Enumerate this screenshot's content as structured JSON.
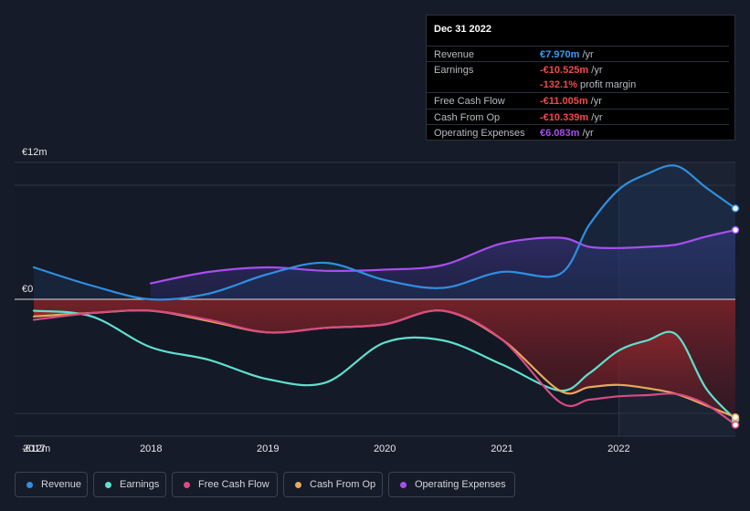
{
  "colors": {
    "revenue": "#2f8fe0",
    "earnings": "#5fe0cf",
    "free_cash_flow": "#d94a83",
    "cash_from_op": "#e8a85a",
    "operating_expenses": "#a84ef0",
    "negative_value": "#e84a4a",
    "background": "#151b28"
  },
  "tooltip": {
    "date": "Dec 31 2022",
    "rows": [
      {
        "label": "Revenue",
        "value": "€7.970m",
        "unit": "/yr",
        "color": "#3b9cf2"
      },
      {
        "label": "Earnings",
        "value": "-€10.525m",
        "unit": "/yr",
        "color": "#ef4b4b"
      },
      {
        "label": "",
        "value": "-132.1%",
        "unit": "profit margin",
        "color": "#ef4b4b"
      },
      {
        "label": "Free Cash Flow",
        "value": "-€11.005m",
        "unit": "/yr",
        "color": "#ef4b4b"
      },
      {
        "label": "Cash From Op",
        "value": "-€10.339m",
        "unit": "/yr",
        "color": "#ef4b4b"
      },
      {
        "label": "Operating Expenses",
        "value": "€6.083m",
        "unit": "/yr",
        "color": "#a84ef0"
      }
    ]
  },
  "legend": [
    {
      "label": "Revenue",
      "color": "#2f8fe0"
    },
    {
      "label": "Earnings",
      "color": "#5fe0cf"
    },
    {
      "label": "Free Cash Flow",
      "color": "#d94a83"
    },
    {
      "label": "Cash From Op",
      "color": "#e8a85a"
    },
    {
      "label": "Operating Expenses",
      "color": "#a84ef0"
    }
  ],
  "chart_data": {
    "type": "line",
    "y_unit": "€m",
    "ylim": [
      -12,
      12
    ],
    "xlim": [
      "2016-11-01",
      "2022-12-31"
    ],
    "y_tick_labels": [
      "€12m",
      "€0",
      "-€12m"
    ],
    "y_ticks": [
      12,
      0,
      -12
    ],
    "x_tick_labels": [
      "2017",
      "2018",
      "2019",
      "2020",
      "2021",
      "2022"
    ],
    "x_ticks": [
      "2017-01-01",
      "2018-01-01",
      "2019-01-01",
      "2020-01-01",
      "2021-01-01",
      "2022-01-01"
    ],
    "highlight_from": "2022-01-01",
    "series": [
      {
        "name": "Revenue",
        "key": "revenue",
        "x": [
          "2016-12-31",
          "2017-06-30",
          "2017-12-31",
          "2018-06-30",
          "2018-12-31",
          "2019-06-30",
          "2019-12-31",
          "2020-06-30",
          "2020-12-31",
          "2021-06-30",
          "2021-09-30",
          "2021-12-31",
          "2022-03-31",
          "2022-06-30",
          "2022-09-30",
          "2022-12-31"
        ],
        "y": [
          2.8,
          1.2,
          0.0,
          0.5,
          2.2,
          3.2,
          1.7,
          1.0,
          2.4,
          2.2,
          6.5,
          9.6,
          11.0,
          11.7,
          9.8,
          7.97
        ]
      },
      {
        "name": "Earnings",
        "key": "earnings",
        "x": [
          "2016-12-31",
          "2017-06-30",
          "2017-12-31",
          "2018-06-30",
          "2018-12-31",
          "2019-06-30",
          "2019-12-31",
          "2020-06-30",
          "2020-12-31",
          "2021-06-30",
          "2021-09-30",
          "2021-12-31",
          "2022-03-31",
          "2022-06-30",
          "2022-09-30",
          "2022-12-31"
        ],
        "y": [
          -1.0,
          -1.5,
          -4.2,
          -5.3,
          -7.0,
          -7.3,
          -3.8,
          -3.6,
          -5.7,
          -8.0,
          -6.5,
          -4.5,
          -3.6,
          -3.1,
          -7.8,
          -10.525
        ]
      },
      {
        "name": "Free Cash Flow",
        "key": "free_cash_flow",
        "x": [
          "2016-12-31",
          "2017-06-30",
          "2017-12-31",
          "2018-06-30",
          "2018-12-31",
          "2019-06-30",
          "2019-12-31",
          "2020-06-30",
          "2020-12-31",
          "2021-06-30",
          "2021-09-30",
          "2021-12-31",
          "2022-03-31",
          "2022-06-30",
          "2022-09-30",
          "2022-12-31"
        ],
        "y": [
          -1.8,
          -1.2,
          -1.0,
          -1.8,
          -2.9,
          -2.5,
          -2.2,
          -1.0,
          -3.5,
          -9.0,
          -8.8,
          -8.5,
          -8.4,
          -8.3,
          -9.2,
          -11.005
        ]
      },
      {
        "name": "Cash From Op",
        "key": "cash_from_op",
        "x": [
          "2016-12-31",
          "2017-06-30",
          "2017-12-31",
          "2018-06-30",
          "2018-12-31",
          "2019-06-30",
          "2019-12-31",
          "2020-06-30",
          "2020-12-31",
          "2021-06-30",
          "2021-09-30",
          "2021-12-31",
          "2022-03-31",
          "2022-06-30",
          "2022-09-30",
          "2022-12-31"
        ],
        "y": [
          -1.5,
          -1.2,
          -1.0,
          -1.9,
          -2.9,
          -2.5,
          -2.2,
          -1.0,
          -3.5,
          -8.0,
          -7.7,
          -7.5,
          -7.8,
          -8.3,
          -9.3,
          -10.339
        ]
      },
      {
        "name": "Operating Expenses",
        "key": "operating_expenses",
        "x": [
          "2017-12-31",
          "2018-06-30",
          "2018-12-31",
          "2019-06-30",
          "2019-12-31",
          "2020-06-30",
          "2020-12-31",
          "2021-06-30",
          "2021-09-30",
          "2021-12-31",
          "2022-03-31",
          "2022-06-30",
          "2022-09-30",
          "2022-12-31"
        ],
        "y": [
          1.4,
          2.4,
          2.8,
          2.5,
          2.6,
          3.0,
          4.9,
          5.4,
          4.6,
          4.5,
          4.6,
          4.8,
          5.5,
          6.083
        ]
      }
    ]
  }
}
